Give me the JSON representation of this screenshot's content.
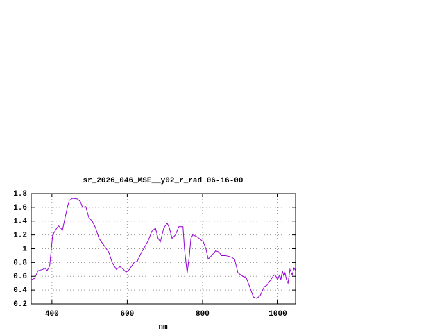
{
  "chart_data": {
    "type": "line",
    "title": "sr_2026_046_MSE__y02_r_rad 06-16-00",
    "x_label": "nm",
    "x": [
      345,
      354,
      363,
      376,
      382,
      387,
      394,
      402,
      413,
      418,
      428,
      433,
      441,
      446,
      455,
      468,
      476,
      481,
      490,
      498,
      507,
      516,
      525,
      538,
      551,
      560,
      571,
      581,
      590,
      597,
      606,
      618,
      627,
      638,
      649,
      656,
      665,
      675,
      682,
      688,
      697,
      706,
      712,
      719,
      728,
      737,
      748,
      752,
      758,
      759,
      765,
      769,
      774,
      783,
      791,
      802,
      809,
      815,
      824,
      835,
      844,
      850,
      861,
      876,
      885,
      894,
      907,
      916,
      925,
      935,
      944,
      953,
      958,
      964,
      971,
      981,
      990,
      995,
      999,
      1005,
      1008,
      1012,
      1016,
      1019,
      1023,
      1027,
      1032,
      1038,
      1043,
      1047
    ],
    "values": [
      0.55,
      0.57,
      0.68,
      0.7,
      0.72,
      0.68,
      0.75,
      1.2,
      1.3,
      1.33,
      1.27,
      1.4,
      1.6,
      1.7,
      1.73,
      1.72,
      1.68,
      1.6,
      1.61,
      1.45,
      1.4,
      1.3,
      1.15,
      1.05,
      0.95,
      0.8,
      0.7,
      0.74,
      0.7,
      0.66,
      0.7,
      0.8,
      0.82,
      0.95,
      1.05,
      1.12,
      1.25,
      1.3,
      1.15,
      1.1,
      1.3,
      1.37,
      1.3,
      1.15,
      1.2,
      1.32,
      1.32,
      1.0,
      0.7,
      0.64,
      0.9,
      1.15,
      1.2,
      1.18,
      1.15,
      1.1,
      1.0,
      0.85,
      0.9,
      0.97,
      0.95,
      0.9,
      0.9,
      0.88,
      0.85,
      0.65,
      0.6,
      0.58,
      0.45,
      0.3,
      0.28,
      0.32,
      0.38,
      0.45,
      0.47,
      0.55,
      0.62,
      0.6,
      0.55,
      0.62,
      0.55,
      0.68,
      0.6,
      0.65,
      0.55,
      0.5,
      0.7,
      0.62,
      0.72,
      0.68
    ],
    "color": "#9400d3",
    "xlim": [
      345,
      1047
    ],
    "xticks": [
      400,
      600,
      800,
      1000
    ],
    "ylim": [
      0.2,
      1.8
    ],
    "yticks": [
      0.2,
      0.4,
      0.6,
      0.8,
      1,
      1.2,
      1.4,
      1.6,
      1.8
    ],
    "grid": true
  }
}
